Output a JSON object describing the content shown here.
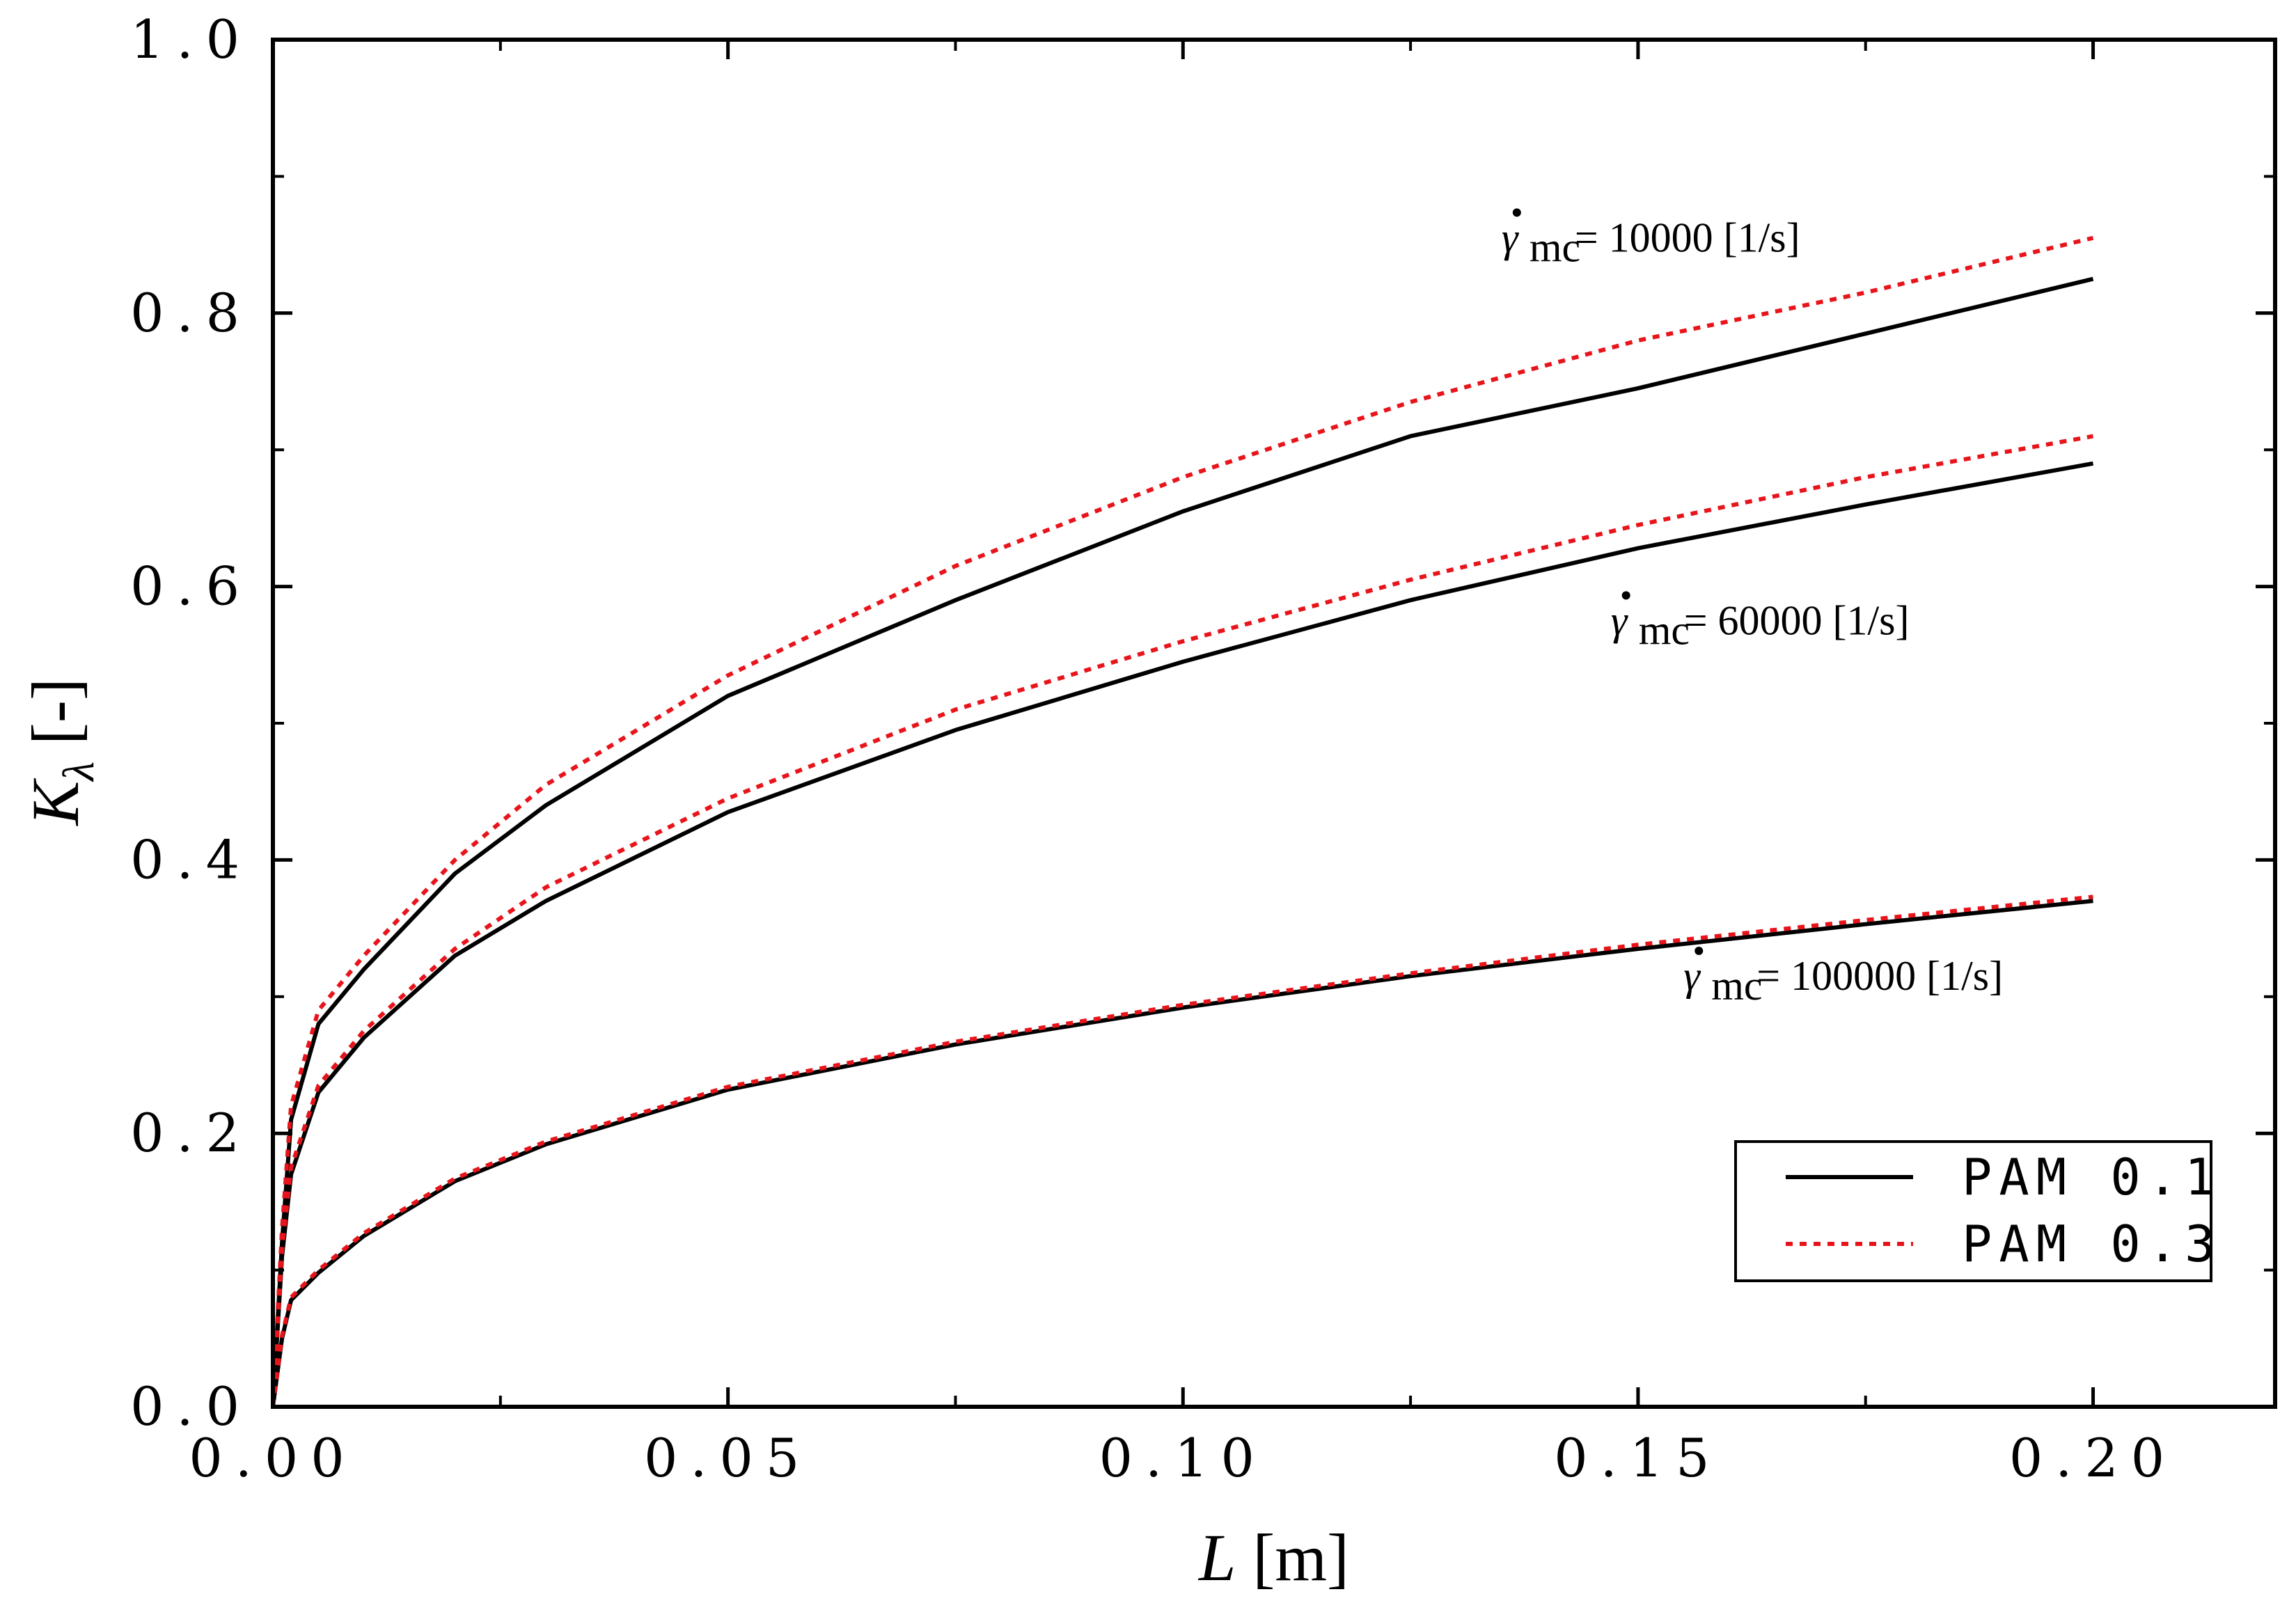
{
  "chart_data": {
    "type": "line",
    "xlabel": "L [m]",
    "ylabel": "Kλ [-]",
    "xlim": [
      0,
      0.22
    ],
    "ylim": [
      0,
      1.0
    ],
    "x_ticks": [
      "0.00",
      "0.05",
      "0.10",
      "0.15",
      "0.20"
    ],
    "y_ticks": [
      "0.0",
      "0.2",
      "0.4",
      "0.6",
      "0.8",
      "1.0"
    ],
    "x": [
      0,
      0.001,
      0.002,
      0.005,
      0.01,
      0.02,
      0.03,
      0.05,
      0.075,
      0.1,
      0.125,
      0.15,
      0.175,
      0.2
    ],
    "series": [
      {
        "name": "PAM 0.1",
        "style": "solid",
        "color": "#000000",
        "group": "10000",
        "values": [
          0,
          0.12,
          0.21,
          0.28,
          0.32,
          0.39,
          0.44,
          0.52,
          0.59,
          0.655,
          0.71,
          0.745,
          0.785,
          0.825
        ]
      },
      {
        "name": "PAM 0.3",
        "style": "dotted",
        "color": "#e8141b",
        "group": "10000",
        "values": [
          0,
          0.13,
          0.22,
          0.29,
          0.33,
          0.4,
          0.455,
          0.535,
          0.615,
          0.68,
          0.735,
          0.78,
          0.815,
          0.855
        ]
      },
      {
        "name": "PAM 0.1",
        "style": "solid",
        "color": "#000000",
        "group": "60000",
        "values": [
          0,
          0.11,
          0.17,
          0.23,
          0.27,
          0.33,
          0.37,
          0.435,
          0.495,
          0.545,
          0.59,
          0.628,
          0.66,
          0.69
        ]
      },
      {
        "name": "PAM 0.3",
        "style": "dotted",
        "color": "#e8141b",
        "group": "60000",
        "values": [
          0,
          0.115,
          0.175,
          0.235,
          0.275,
          0.335,
          0.38,
          0.445,
          0.51,
          0.56,
          0.605,
          0.645,
          0.68,
          0.71
        ]
      },
      {
        "name": "PAM 0.1",
        "style": "solid",
        "color": "#000000",
        "group": "100000",
        "values": [
          0,
          0.05,
          0.078,
          0.098,
          0.125,
          0.165,
          0.192,
          0.232,
          0.265,
          0.292,
          0.315,
          0.335,
          0.353,
          0.37
        ]
      },
      {
        "name": "PAM 0.3",
        "style": "dotted",
        "color": "#e8141b",
        "group": "100000",
        "values": [
          0,
          0.052,
          0.08,
          0.1,
          0.127,
          0.167,
          0.194,
          0.234,
          0.267,
          0.294,
          0.317,
          0.338,
          0.356,
          0.373
        ]
      }
    ],
    "annotations": [
      {
        "text": "= 10000 [1/s]",
        "x": 0.135,
        "y": 0.845
      },
      {
        "text": "= 60000 [1/s]",
        "x": 0.147,
        "y": 0.565
      },
      {
        "text": "= 100000 [1/s]",
        "x": 0.155,
        "y": 0.305
      }
    ],
    "legend": {
      "position": "bottom-right",
      "entries": [
        {
          "label": "PAM 0.1",
          "style": "solid",
          "color": "#000000"
        },
        {
          "label": "PAM 0.3",
          "style": "dotted",
          "color": "#e8141b"
        }
      ]
    }
  }
}
